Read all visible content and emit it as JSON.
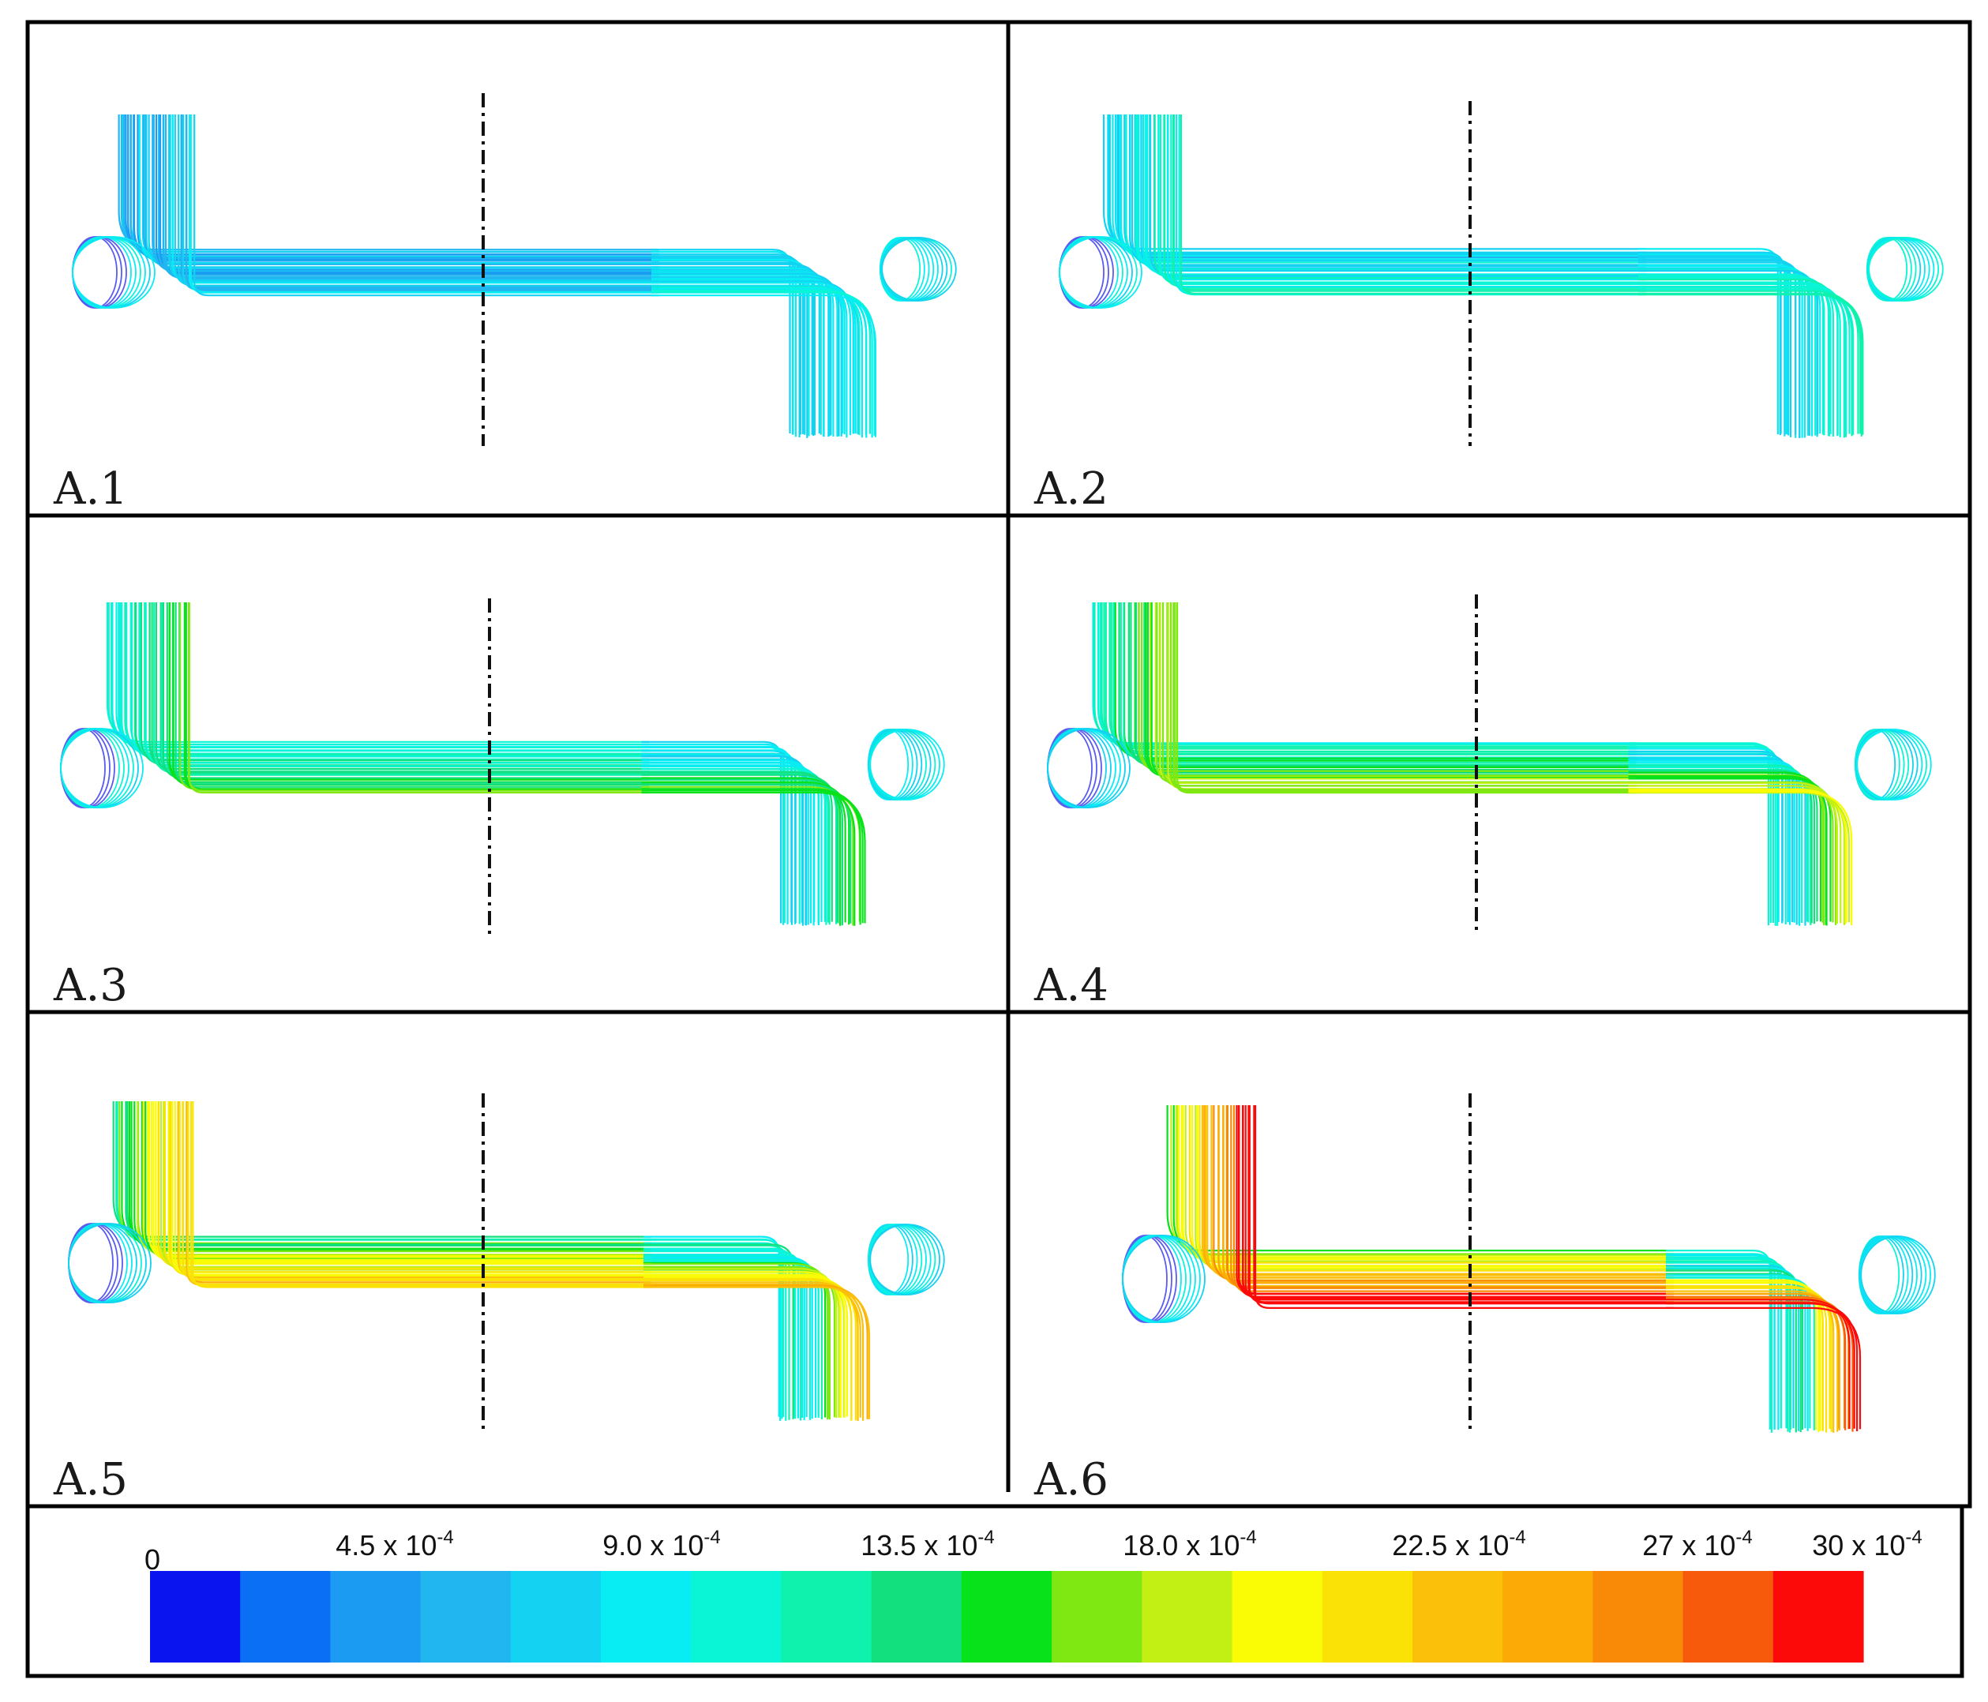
{
  "panels": [
    {
      "label": "A.1",
      "intensity": 0.1
    },
    {
      "label": "A.2",
      "intensity": 0.22
    },
    {
      "label": "A.3",
      "intensity": 0.38
    },
    {
      "label": "A.4",
      "intensity": 0.5
    },
    {
      "label": "A.5",
      "intensity": 0.68
    },
    {
      "label": "A.6",
      "intensity": 0.92
    }
  ],
  "colorbar": {
    "ticks": [
      {
        "base": "0",
        "exp": ""
      },
      {
        "base": "4.5 x 10",
        "exp": "-4"
      },
      {
        "base": "9.0 x 10",
        "exp": "-4"
      },
      {
        "base": "13.5 x 10",
        "exp": "-4"
      },
      {
        "base": "18.0 x 10",
        "exp": "-4"
      },
      {
        "base": "22.5 x 10",
        "exp": "-4"
      },
      {
        "base": "27 x 10",
        "exp": "-4"
      },
      {
        "base": "30 x 10",
        "exp": "-4"
      }
    ],
    "colors": [
      "#0a14ee",
      "#0a6ff5",
      "#1b9cf2",
      "#22b6f0",
      "#13d2f2",
      "#08edf4",
      "#0af5d6",
      "#0ef2ad",
      "#12e07f",
      "#08e21a",
      "#7fe812",
      "#c2f014",
      "#fafc06",
      "#fbe206",
      "#fbc00a",
      "#fbaa06",
      "#f88a08",
      "#f75a0a",
      "#fc0a0a"
    ]
  }
}
